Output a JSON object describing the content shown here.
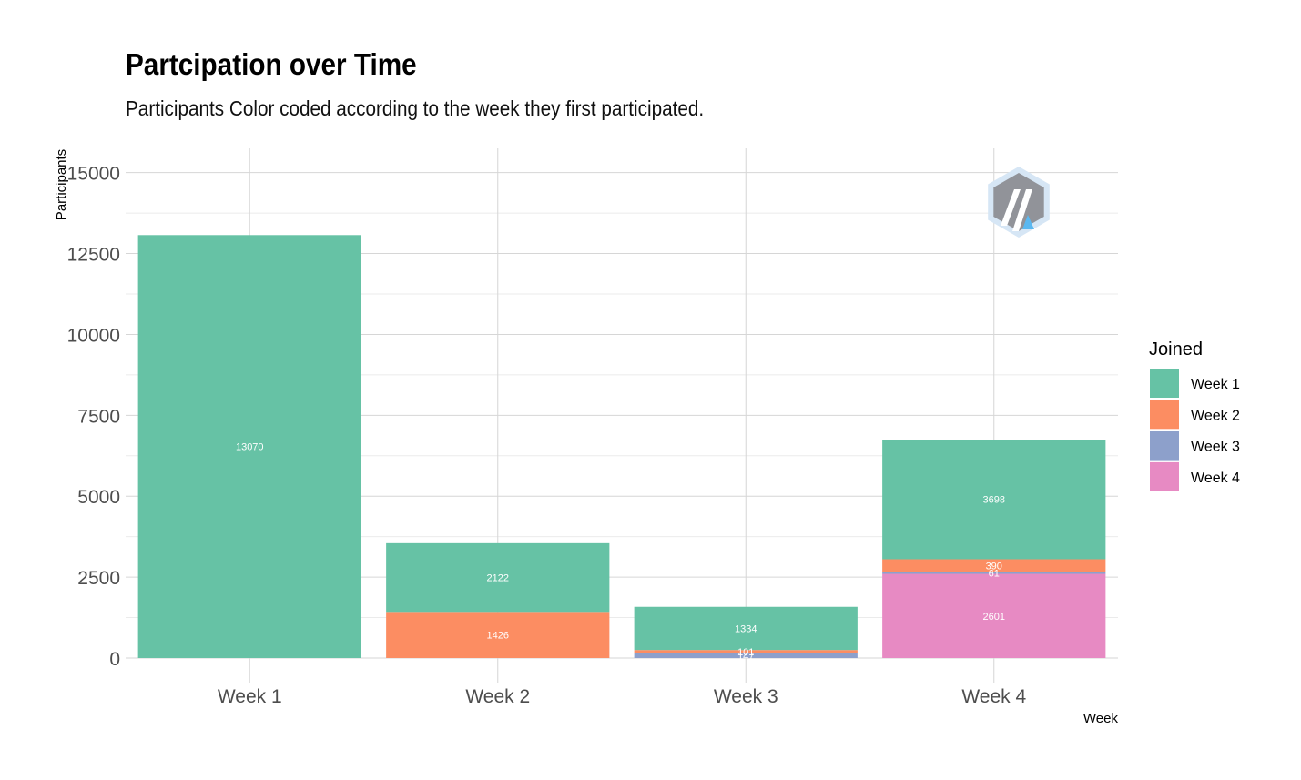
{
  "chart_data": {
    "type": "bar",
    "stacked": true,
    "title": "Partcipation over Time",
    "subtitle": "Participants Color coded according to the week they first participated.",
    "xlabel": "Week",
    "ylabel": "Participants",
    "categories": [
      "Week 1",
      "Week 2",
      "Week 3",
      "Week 4"
    ],
    "ylim": [
      0,
      15750
    ],
    "yticks": [
      0,
      2500,
      5000,
      7500,
      10000,
      12500,
      15000
    ],
    "grid": true,
    "legend": {
      "title": "Joined",
      "placement": "right"
    },
    "stack_order": [
      "Week 4",
      "Week 3",
      "Week 2",
      "Week 1"
    ],
    "series": [
      {
        "name": "Week 1",
        "color": "#66c2a5",
        "values": [
          13070,
          2122,
          1334,
          3698
        ]
      },
      {
        "name": "Week 2",
        "color": "#fc8d62",
        "values": [
          0,
          1426,
          101,
          390
        ]
      },
      {
        "name": "Week 3",
        "color": "#8da0cb",
        "values": [
          0,
          0,
          147,
          61
        ]
      },
      {
        "name": "Week 4",
        "color": "#e78ac3",
        "values": [
          0,
          0,
          0,
          2601
        ]
      }
    ]
  },
  "logo": {
    "icon": "arbitrum-logo-icon"
  }
}
